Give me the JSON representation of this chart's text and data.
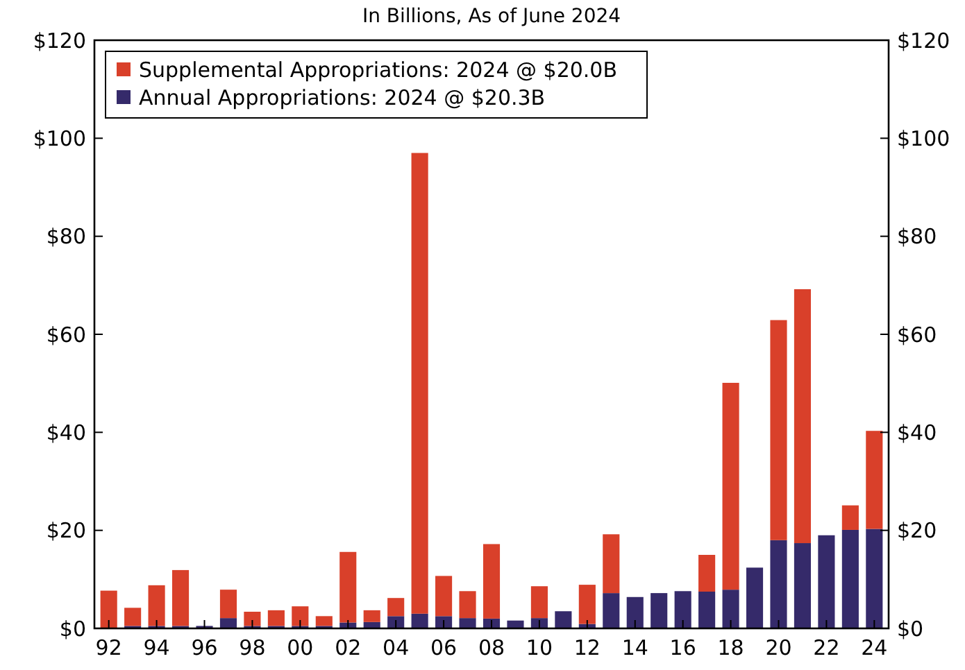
{
  "chart_data": {
    "type": "bar",
    "title": "In Billions, As of June 2024",
    "stacked": true,
    "categories": [
      "92",
      null,
      "94",
      null,
      "96",
      null,
      "98",
      null,
      "00",
      null,
      "02",
      null,
      "04",
      null,
      "06",
      null,
      "08",
      null,
      "10",
      null,
      "12",
      null,
      "14",
      null,
      "16",
      null,
      "18",
      null,
      "20",
      null,
      "22",
      null,
      "24"
    ],
    "series": [
      {
        "name": "Annual Appropriations: 2024 @ $20.3B",
        "color": "#352a6a",
        "values": [
          null,
          0.5,
          0.5,
          0.5,
          0.5,
          2.1,
          0.5,
          0.5,
          0.5,
          0.5,
          1.2,
          1.3,
          2.5,
          3.0,
          2.5,
          2.1,
          2.0,
          1.6,
          2.1,
          3.5,
          0.9,
          7.2,
          6.4,
          7.2,
          7.6,
          7.5,
          7.9,
          12.4,
          18.0,
          17.4,
          19.0,
          20.1,
          20.3
        ]
      },
      {
        "name": "Supplemental Appropriations: 2024 @ $20.0B",
        "color": "#d9402a",
        "values": [
          7.7,
          3.7,
          8.3,
          11.4,
          0,
          5.8,
          2.9,
          3.2,
          4.0,
          2.0,
          14.4,
          2.4,
          3.7,
          94.0,
          8.2,
          5.5,
          15.2,
          0,
          6.5,
          0,
          8.0,
          12.0,
          0,
          0,
          0,
          7.5,
          42.2,
          0,
          44.9,
          51.8,
          0,
          5.0,
          20.0
        ]
      }
    ],
    "ylim": [
      0,
      120
    ],
    "yticks": [
      {
        "value": 0,
        "label": "$0"
      },
      {
        "value": 20,
        "label": "$20"
      },
      {
        "value": 40,
        "label": "$40"
      },
      {
        "value": 60,
        "label": "$60"
      },
      {
        "value": 80,
        "label": "$80"
      },
      {
        "value": 100,
        "label": "$100"
      },
      {
        "value": 120,
        "label": "$120"
      }
    ],
    "y2lim": [
      0,
      120
    ],
    "y2ticks": [
      {
        "value": 0,
        "label": "$0"
      },
      {
        "value": 20,
        "label": "$20"
      },
      {
        "value": 40,
        "label": "$40"
      },
      {
        "value": 60,
        "label": "$60"
      },
      {
        "value": 80,
        "label": "$80"
      },
      {
        "value": 100,
        "label": "$100"
      },
      {
        "value": 120,
        "label": "$120"
      }
    ],
    "legend": "top left",
    "grid": false
  }
}
